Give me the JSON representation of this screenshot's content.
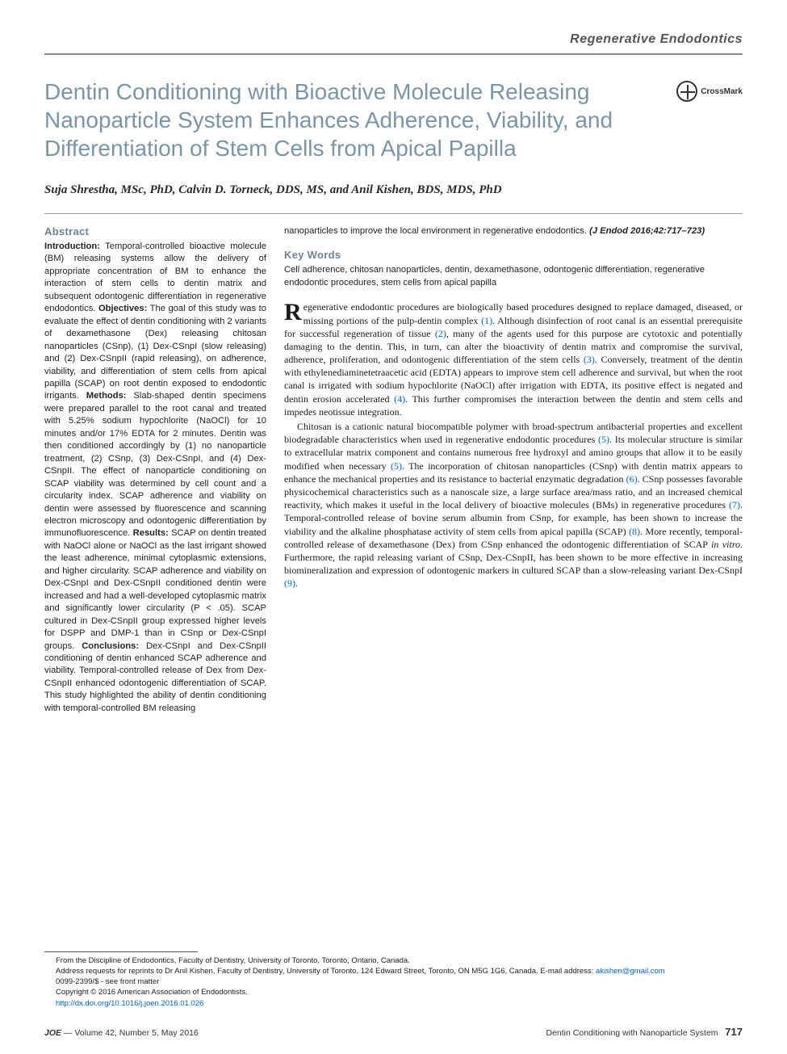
{
  "header": {
    "category": "Regenerative Endodontics"
  },
  "title": "Dentin Conditioning with Bioactive Molecule Releasing Nanoparticle System Enhances Adherence, Viability, and Differentiation of Stem Cells from Apical Papilla",
  "crossmark_label": "CrossMark",
  "authors": "Suja Shrestha, MSc, PhD, Calvin D. Torneck, DDS, MS, and Anil Kishen, BDS, MDS, PhD",
  "abstract": {
    "heading": "Abstract",
    "intro_label": "Introduction:",
    "intro": " Temporal-controlled bioactive molecule (BM) releasing systems allow the delivery of appropriate concentration of BM to enhance the interaction of stem cells to dentin matrix and subsequent odontogenic differentiation in regenerative endodontics. ",
    "obj_label": "Objectives:",
    "obj": " The goal of this study was to evaluate the effect of dentin conditioning with 2 variants of dexamethasone (Dex) releasing chitosan nanoparticles (CSnp), (1) Dex-CSnpI (slow releasing) and (2) Dex-CSnpII (rapid releasing), on adherence, viability, and differentiation of stem cells from apical papilla (SCAP) on root dentin exposed to endodontic irrigants. ",
    "meth_label": "Methods:",
    "meth": " Slab-shaped dentin specimens were prepared parallel to the root canal and treated with 5.25% sodium hypochlorite (NaOCl) for 10 minutes and/or 17% EDTA for 2 minutes. Dentin was then conditioned accordingly by (1) no nanoparticle treatment, (2) CSnp, (3) Dex-CSnpI, and (4) Dex-CSnpII. The effect of nanoparticle conditioning on SCAP viability was determined by cell count and a circularity index. SCAP adherence and viability on dentin were assessed by fluorescence and scanning electron microscopy and odontogenic differentiation by immunofluorescence. ",
    "res_label": "Results:",
    "res": " SCAP on dentin treated with NaOCl alone or NaOCl as the last irrigant showed the least adherence, minimal cytoplasmic extensions, and higher circularity. SCAP adherence and viability on Dex-CSnpI and Dex-CSnpII conditioned dentin were increased and had a well-developed cytoplasmic matrix and significantly lower circularity (P < .05). SCAP cultured in Dex-CSnpII group expressed higher levels for DSPP and DMP-1 than in CSnp or Dex-CSnpI groups. ",
    "conc_label": "Conclusions:",
    "conc": " Dex-CSnpI and Dex-CSnpII conditioning of dentin enhanced SCAP adherence and viability. Temporal-controlled release of Dex from Dex-CSnpII enhanced odontogenic differentiation of SCAP. This study highlighted the ability of dentin conditioning with temporal-controlled BM releasing",
    "cont": "nanoparticles to improve the local environment in regenerative endodontics. ",
    "citation": "(J Endod 2016;42:717–723)"
  },
  "keywords": {
    "heading": "Key Words",
    "text": "Cell adherence, chitosan nanoparticles, dentin, dexamethasone, odontogenic differentiation, regenerative endodontic procedures, stem cells from apical papilla"
  },
  "body": {
    "p1_drop": "R",
    "p1_a": "egenerative endodontic procedures are biologically based procedures designed to replace damaged, diseased, or missing portions of the pulp-dentin complex ",
    "r1": "(1)",
    "p1_b": ". Although disinfection of root canal is an essential prerequisite for successful regeneration of tissue ",
    "r2": "(2)",
    "p1_c": ", many of the agents used for this purpose are cytotoxic and potentially damaging to the dentin. This, in turn, can alter the bioactivity of dentin matrix and compromise the survival, adherence, proliferation, and odontogenic differentiation of the stem cells ",
    "r3": "(3)",
    "p1_d": ". Conversely, treatment of the dentin with ethylenediaminetetraacetic acid (EDTA) appears to improve stem cell adherence and survival, but when the root canal is irrigated with sodium hypochlorite (NaOCl) after irrigation with EDTA, its positive effect is negated and dentin erosion accelerated ",
    "r4": "(4)",
    "p1_e": ". This further compromises the interaction between the dentin and stem cells and impedes neotissue integration.",
    "p2_a": "Chitosan is a cationic natural biocompatible polymer with broad-spectrum antibacterial properties and excellent biodegradable characteristics when used in regenerative endodontic procedures ",
    "r5": "(5)",
    "p2_b": ". Its molecular structure is similar to extracellular matrix component and contains numerous free hydroxyl and amino groups that allow it to be easily modified when necessary ",
    "r5b": "(5)",
    "p2_c": ". The incorporation of chitosan nanoparticles (CSnp) with dentin matrix appears to enhance the mechanical properties and its resistance to bacterial enzymatic degradation ",
    "r6": "(6)",
    "p2_d": ". CSnp possesses favorable physicochemical characteristics such as a nanoscale size, a large surface area/mass ratio, and an increased chemical reactivity, which makes it useful in the local delivery of bioactive molecules (BMs) in regenerative procedures ",
    "r7": "(7)",
    "p2_e": ". Temporal-controlled release of bovine serum albumin from CSnp, for example, has been shown to increase the viability and the alkaline phosphatase activity of stem cells from apical papilla (SCAP) ",
    "r8": "(8)",
    "p2_f": ". More recently, temporal-controlled release of dexamethasone (Dex) from CSnp enhanced the odontogenic differentiation of SCAP ",
    "p2_g": "in vitro",
    "p2_h": ". Furthermore, the rapid releasing variant of CSnp, Dex-CSnpII, has been shown to be more effective in increasing biomineralization and expression of odontogenic markers in cultured SCAP than a slow-releasing variant Dex-CSnpI ",
    "r9": "(9)",
    "p2_i": "."
  },
  "footer": {
    "line1": "From the Discipline of Endodontics, Faculty of Dentistry, University of Toronto, Toronto, Ontario, Canada.",
    "line2a": "Address requests for reprints to Dr Anil Kishen, Faculty of Dentistry, University of Toronto, 124 Edward Street, Toronto, ON M5G 1G6, Canada. E-mail address: ",
    "email": "akishen@gmail.com",
    "line3": "0099-2399/$ - see front matter",
    "line4": "Copyright © 2016 American Association of Endodontists.",
    "doi": "http://dx.doi.org/10.1016/j.joen.2016.01.026"
  },
  "pagefoot": {
    "journal": "JOE",
    "issue": " — Volume 42, Number 5, May 2016",
    "running": "Dentin Conditioning with Nanoparticle System",
    "page": "717"
  },
  "colors": {
    "accent": "#7a95a8",
    "link": "#0066cc",
    "text": "#1a1a1a"
  }
}
